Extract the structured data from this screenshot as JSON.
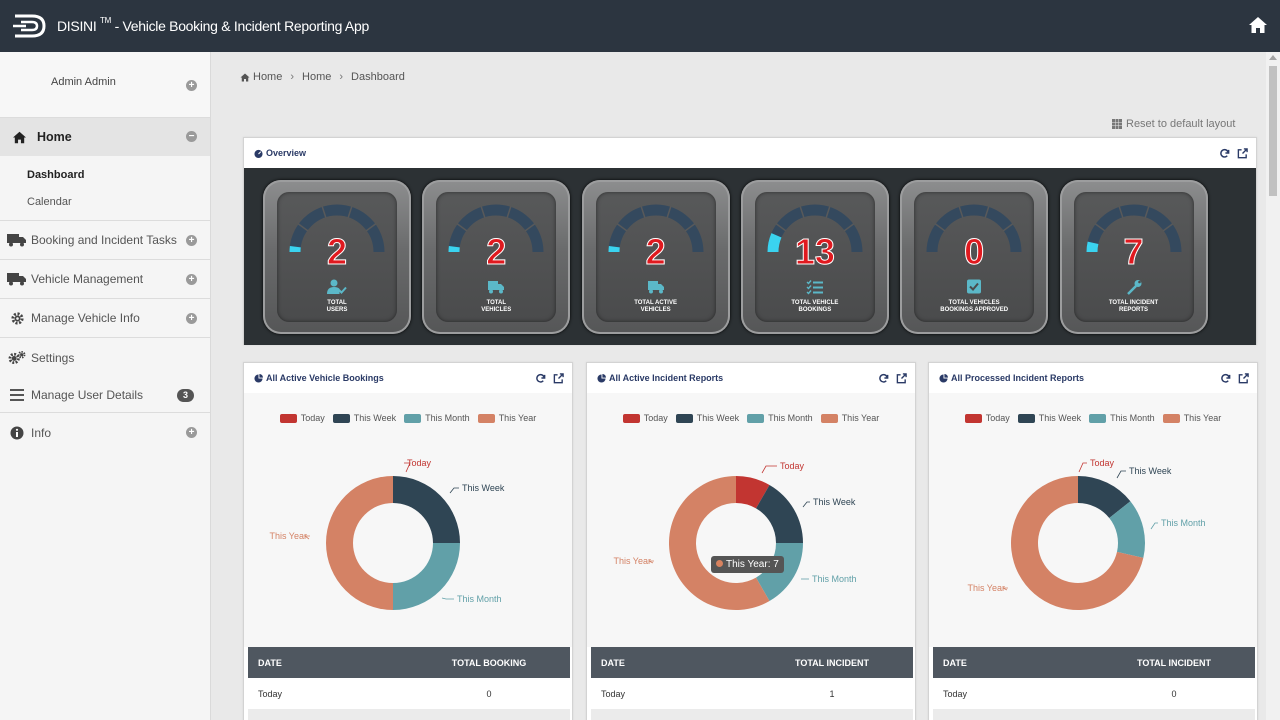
{
  "header": {
    "brand": "DISINI",
    "trademark": "TM",
    "subtitle": " - Vehicle Booking & Incident Reporting App"
  },
  "sidebar": {
    "user": "Admin Admin",
    "items": [
      {
        "label": "Home",
        "icon": "home-icon"
      },
      {
        "label": "Booking and Incident Tasks",
        "icon": "truck-icon"
      },
      {
        "label": "Vehicle Management",
        "icon": "truck-icon"
      },
      {
        "label": "Manage Vehicle Info",
        "icon": "gear-icon"
      },
      {
        "label": "Settings",
        "icon": "gears-icon"
      },
      {
        "label": "Manage User Details",
        "icon": "list-icon",
        "badge": "3"
      },
      {
        "label": "Info",
        "icon": "info-icon"
      }
    ],
    "sub_items": [
      "Dashboard",
      "Calendar"
    ]
  },
  "breadcrumb": [
    "Home",
    "Home",
    "Dashboard"
  ],
  "reset_label": "Reset to default layout",
  "overview": {
    "title": "Overview",
    "gauges": [
      {
        "value": "2",
        "level": 0.04,
        "label1": "TOTAL",
        "label2": "USERS",
        "icon": "user-check-icon"
      },
      {
        "value": "2",
        "level": 0.04,
        "label1": "TOTAL",
        "label2": "VEHICLES",
        "icon": "truck-icon"
      },
      {
        "value": "2",
        "level": 0.04,
        "label1": "TOTAL ACTIVE",
        "label2": "VEHICLES",
        "icon": "truck-icon"
      },
      {
        "value": "13",
        "level": 0.13,
        "label1": "TOTAL VEHICLE",
        "label2": "BOOKINGS",
        "icon": "list-check-icon"
      },
      {
        "value": "0",
        "level": 0,
        "label1": "TOTAL VEHICLES",
        "label2": "BOOKINGS APPROVED",
        "icon": "checkbox-icon"
      },
      {
        "value": "7",
        "level": 0.07,
        "label1": "TOTAL INCIDENT",
        "label2": "REPORTS",
        "icon": "wrench-icon"
      }
    ]
  },
  "legend": [
    "Today",
    "This Week",
    "This Month",
    "This Year"
  ],
  "colors": {
    "today": "#c23531",
    "week": "#2f4554",
    "month": "#61a0a8",
    "year": "#d48265",
    "header": "#2c3540"
  },
  "charts": [
    {
      "title": "All Active Vehicle Bookings",
      "col2": "TOTAL BOOKING",
      "rows": [
        {
          "label": "Today",
          "value": "0"
        }
      ],
      "chart_data": {
        "type": "pie",
        "categories": [
          "Today",
          "This Week",
          "This Month",
          "This Year"
        ],
        "values": [
          0,
          2,
          2,
          4
        ]
      }
    },
    {
      "title": "All Active Incident Reports",
      "col2": "TOTAL INCIDENT",
      "rows": [
        {
          "label": "Today",
          "value": "1"
        }
      ],
      "tooltip": "This Year: 7",
      "chart_data": {
        "type": "pie",
        "categories": [
          "Today",
          "This Week",
          "This Month",
          "This Year"
        ],
        "values": [
          1,
          2,
          2,
          7
        ]
      }
    },
    {
      "title": "All Processed Incident Reports",
      "col2": "TOTAL INCIDENT",
      "rows": [
        {
          "label": "Today",
          "value": "0"
        }
      ],
      "chart_data": {
        "type": "pie",
        "categories": [
          "Today",
          "This Week",
          "This Month",
          "This Year"
        ],
        "values": [
          0,
          1,
          1,
          5
        ]
      }
    }
  ],
  "table_header": {
    "col1": "DATE"
  }
}
